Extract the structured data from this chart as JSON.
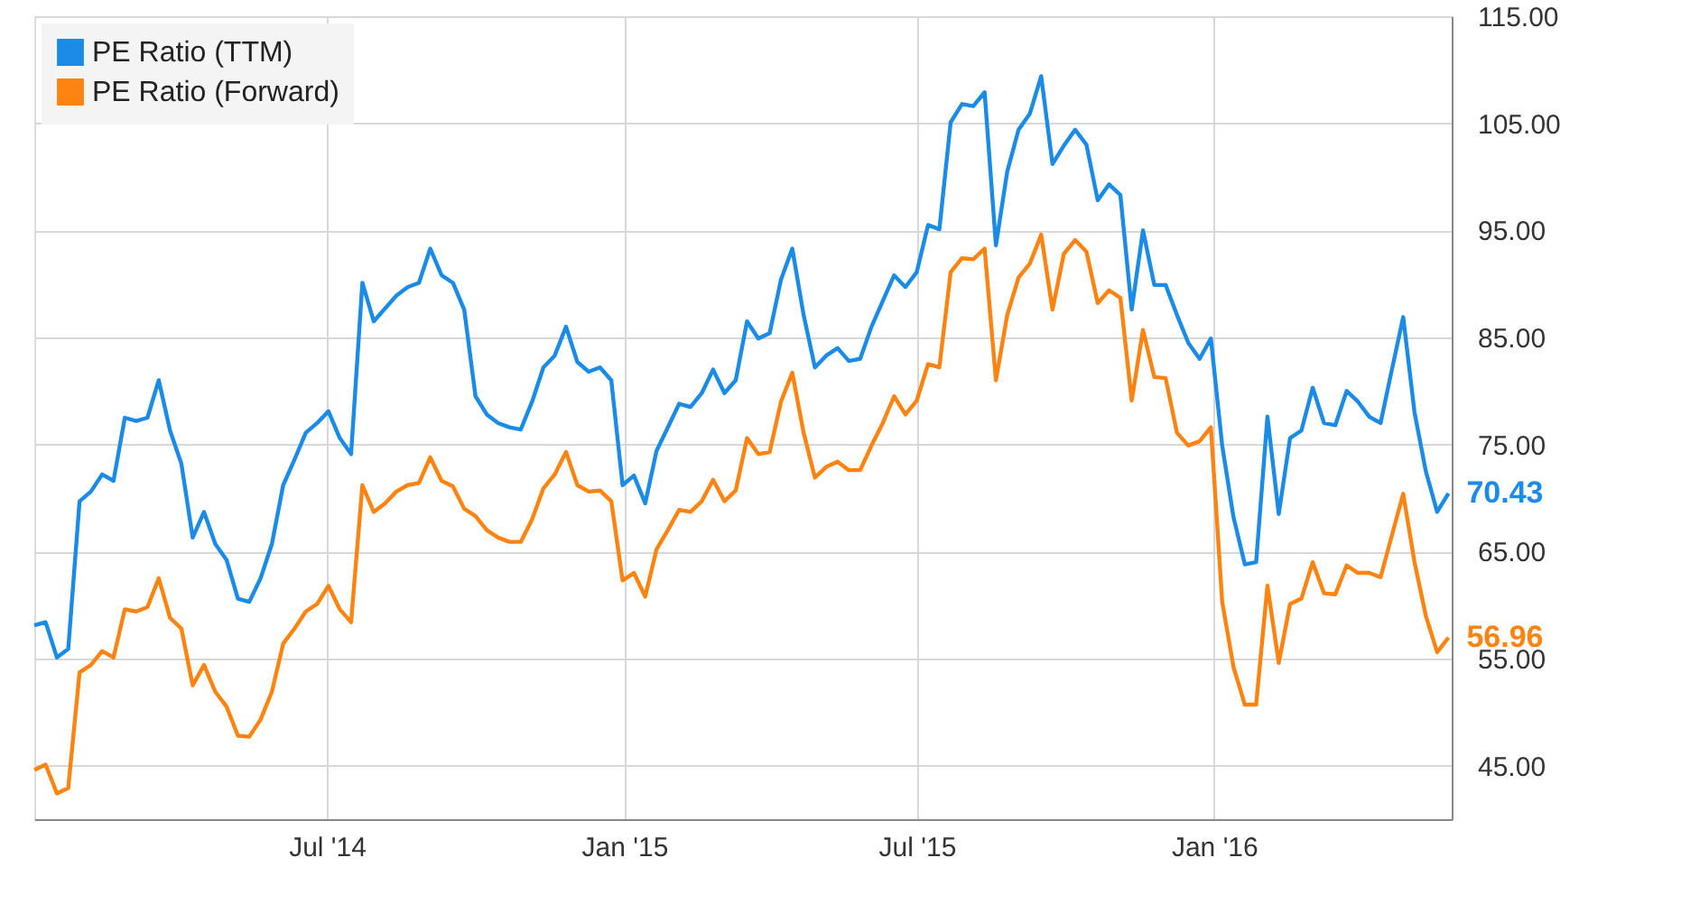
{
  "chart_data": {
    "type": "line",
    "xlim": [
      "2014-01-01",
      "2016-05-27"
    ],
    "ylim": [
      40,
      115
    ],
    "xticks": [
      {
        "value": "2014-07-01",
        "label": "Jul '14"
      },
      {
        "value": "2015-01-01",
        "label": "Jan '15"
      },
      {
        "value": "2015-07-01",
        "label": "Jul '15"
      },
      {
        "value": "2016-01-01",
        "label": "Jan '16"
      }
    ],
    "yticks": [
      {
        "value": 45,
        "label": "45.00"
      },
      {
        "value": 55,
        "label": "55.00"
      },
      {
        "value": 65,
        "label": "65.00"
      },
      {
        "value": 75,
        "label": "75.00"
      },
      {
        "value": 85,
        "label": "85.00"
      },
      {
        "value": 95,
        "label": "95.00"
      },
      {
        "value": 105,
        "label": "105.00"
      },
      {
        "value": 115,
        "label": "115.00"
      }
    ],
    "grid": true,
    "legend": "top left",
    "marker": "none",
    "line_style": "solid",
    "x": [
      "2014-01-01",
      "2014-01-08",
      "2014-01-15",
      "2014-01-22",
      "2014-01-29",
      "2014-02-05",
      "2014-02-12",
      "2014-02-19",
      "2014-02-26",
      "2014-03-05",
      "2014-03-12",
      "2014-03-19",
      "2014-03-26",
      "2014-04-02",
      "2014-04-09",
      "2014-04-16",
      "2014-04-23",
      "2014-04-30",
      "2014-05-07",
      "2014-05-14",
      "2014-05-21",
      "2014-05-28",
      "2014-06-04",
      "2014-06-11",
      "2014-06-18",
      "2014-06-25",
      "2014-07-02",
      "2014-07-09",
      "2014-07-16",
      "2014-07-23",
      "2014-07-30",
      "2014-08-06",
      "2014-08-13",
      "2014-08-20",
      "2014-08-27",
      "2014-09-03",
      "2014-09-10",
      "2014-09-17",
      "2014-09-24",
      "2014-10-01",
      "2014-10-08",
      "2014-10-15",
      "2014-10-22",
      "2014-10-29",
      "2014-11-05",
      "2014-11-12",
      "2014-11-19",
      "2014-11-26",
      "2014-12-03",
      "2014-12-10",
      "2014-12-17",
      "2014-12-24",
      "2014-12-31",
      "2015-01-07",
      "2015-01-14",
      "2015-01-21",
      "2015-01-28",
      "2015-02-04",
      "2015-02-11",
      "2015-02-18",
      "2015-02-25",
      "2015-03-04",
      "2015-03-11",
      "2015-03-18",
      "2015-03-25",
      "2015-04-01",
      "2015-04-08",
      "2015-04-15",
      "2015-04-22",
      "2015-04-29",
      "2015-05-06",
      "2015-05-13",
      "2015-05-20",
      "2015-05-27",
      "2015-06-03",
      "2015-06-10",
      "2015-06-17",
      "2015-06-24",
      "2015-07-01",
      "2015-07-08",
      "2015-07-15",
      "2015-07-22",
      "2015-07-29",
      "2015-08-05",
      "2015-08-12",
      "2015-08-19",
      "2015-08-26",
      "2015-09-02",
      "2015-09-09",
      "2015-09-16",
      "2015-09-23",
      "2015-09-30",
      "2015-10-07",
      "2015-10-14",
      "2015-10-21",
      "2015-10-28",
      "2015-11-04",
      "2015-11-11",
      "2015-11-18",
      "2015-11-25",
      "2015-12-02",
      "2015-12-09",
      "2015-12-16",
      "2015-12-23",
      "2015-12-30",
      "2016-01-06",
      "2016-01-13",
      "2016-01-20",
      "2016-01-27",
      "2016-02-03",
      "2016-02-10",
      "2016-02-17",
      "2016-02-24",
      "2016-03-02",
      "2016-03-09",
      "2016-03-16",
      "2016-03-23",
      "2016-03-30",
      "2016-04-06",
      "2016-04-13",
      "2016-04-20",
      "2016-04-27",
      "2016-05-04",
      "2016-05-11",
      "2016-05-18",
      "2016-05-25"
    ],
    "series": [
      {
        "name": "PE Ratio (TTM)",
        "color": "#1a8be6",
        "values": [
          58.1,
          58.4,
          55.1,
          55.9,
          69.7,
          70.6,
          72.2,
          71.6,
          77.5,
          77.2,
          77.5,
          81.0,
          76.3,
          73.2,
          66.3,
          68.7,
          65.7,
          64.2,
          60.6,
          60.3,
          62.5,
          65.7,
          71.2,
          73.6,
          76.1,
          77.0,
          78.1,
          75.6,
          74.1,
          90.1,
          86.5,
          87.7,
          88.9,
          89.7,
          90.1,
          93.3,
          90.8,
          90.1,
          87.6,
          79.5,
          77.8,
          77.0,
          76.6,
          76.4,
          79.0,
          82.2,
          83.3,
          86.0,
          82.7,
          81.8,
          82.2,
          81.0,
          71.2,
          72.1,
          69.5,
          74.4,
          76.6,
          78.8,
          78.5,
          79.8,
          82.0,
          79.8,
          81.0,
          86.5,
          84.9,
          85.4,
          90.4,
          93.3,
          87.1,
          82.2,
          83.3,
          84.0,
          82.8,
          83.0,
          86.0,
          88.4,
          90.8,
          89.7,
          91.1,
          95.5,
          95.1,
          105.1,
          106.8,
          106.6,
          107.9,
          93.6,
          100.5,
          104.4,
          105.9,
          109.4,
          101.2,
          102.9,
          104.4,
          103.0,
          97.8,
          99.3,
          98.3,
          87.6,
          95.0,
          89.9,
          89.9,
          87.1,
          84.5,
          83.0,
          84.9,
          74.9,
          68.2,
          63.8,
          64.0,
          77.6,
          68.5,
          75.6,
          76.3,
          80.3,
          77.0,
          76.8,
          80.0,
          79.0,
          77.6,
          77.0,
          82.0,
          86.9,
          78.0,
          72.5,
          68.7,
          70.43
        ],
        "value_labels": [
          null,
          null,
          null,
          null,
          null,
          null,
          null,
          null,
          null,
          null,
          null,
          null,
          null,
          null,
          null,
          null,
          null,
          null,
          null,
          null,
          null,
          null,
          null,
          null,
          null,
          null,
          null,
          null,
          null,
          null,
          null,
          null,
          null,
          null,
          null,
          null,
          null,
          null,
          null,
          null,
          null,
          null,
          null,
          null,
          null,
          null,
          null,
          null,
          null,
          null,
          null,
          null,
          null,
          null,
          null,
          null,
          null,
          null,
          null,
          null,
          null,
          null,
          null,
          null,
          null,
          null,
          null,
          null,
          null,
          null,
          null,
          null,
          null,
          null,
          null,
          null,
          null,
          null,
          null,
          null,
          null,
          null,
          null,
          null,
          null,
          null,
          null,
          null,
          null,
          null,
          null,
          null,
          null,
          null,
          null,
          null,
          null,
          null,
          null,
          null,
          null,
          null,
          null,
          null,
          null,
          null,
          null,
          null,
          null,
          null,
          null,
          null,
          null,
          null,
          null,
          null,
          null,
          null,
          null,
          null,
          null,
          null,
          null,
          null,
          null,
          "70.43"
        ]
      },
      {
        "name": "PE Ratio (Forward)",
        "color": "#ff8310",
        "values": [
          44.6,
          45.1,
          42.4,
          42.9,
          53.7,
          54.4,
          55.7,
          55.1,
          59.6,
          59.4,
          59.8,
          62.5,
          58.8,
          57.8,
          52.5,
          54.4,
          51.9,
          50.5,
          47.8,
          47.7,
          49.3,
          51.9,
          56.4,
          57.8,
          59.4,
          60.1,
          61.8,
          59.6,
          58.4,
          71.2,
          68.7,
          69.5,
          70.6,
          71.2,
          71.4,
          73.8,
          71.6,
          71.1,
          69.0,
          68.3,
          67.0,
          66.3,
          65.9,
          65.9,
          68.0,
          70.9,
          72.2,
          74.3,
          71.2,
          70.6,
          70.7,
          69.7,
          62.3,
          63.0,
          60.8,
          65.2,
          67.0,
          68.9,
          68.7,
          69.7,
          71.7,
          69.7,
          70.7,
          75.6,
          74.1,
          74.3,
          79.0,
          81.7,
          76.1,
          71.9,
          72.9,
          73.4,
          72.6,
          72.6,
          74.9,
          77.0,
          79.5,
          77.8,
          79.1,
          82.5,
          82.2,
          91.1,
          92.4,
          92.3,
          93.3,
          81.0,
          87.1,
          90.6,
          91.9,
          94.6,
          87.6,
          92.8,
          94.1,
          93.0,
          88.2,
          89.4,
          88.7,
          79.1,
          85.7,
          81.3,
          81.2,
          76.1,
          74.9,
          75.3,
          76.6,
          60.3,
          54.2,
          50.7,
          50.7,
          61.8,
          54.6,
          60.1,
          60.6,
          64.0,
          61.1,
          61.0,
          63.7,
          63.0,
          63.0,
          62.6,
          66.5,
          70.4,
          64.0,
          59.0,
          55.6,
          56.96
        ],
        "value_labels": [
          null,
          null,
          null,
          null,
          null,
          null,
          null,
          null,
          null,
          null,
          null,
          null,
          null,
          null,
          null,
          null,
          null,
          null,
          null,
          null,
          null,
          null,
          null,
          null,
          null,
          null,
          null,
          null,
          null,
          null,
          null,
          null,
          null,
          null,
          null,
          null,
          null,
          null,
          null,
          null,
          null,
          null,
          null,
          null,
          null,
          null,
          null,
          null,
          null,
          null,
          null,
          null,
          null,
          null,
          null,
          null,
          null,
          null,
          null,
          null,
          null,
          null,
          null,
          null,
          null,
          null,
          null,
          null,
          null,
          null,
          null,
          null,
          null,
          null,
          null,
          null,
          null,
          null,
          null,
          null,
          null,
          null,
          null,
          null,
          null,
          null,
          null,
          null,
          null,
          null,
          null,
          null,
          null,
          null,
          null,
          null,
          null,
          null,
          null,
          null,
          null,
          null,
          null,
          null,
          null,
          null,
          null,
          null,
          null,
          null,
          null,
          null,
          null,
          null,
          null,
          null,
          null,
          null,
          null,
          null,
          null,
          null,
          null,
          null,
          null,
          "56.96"
        ]
      }
    ]
  }
}
